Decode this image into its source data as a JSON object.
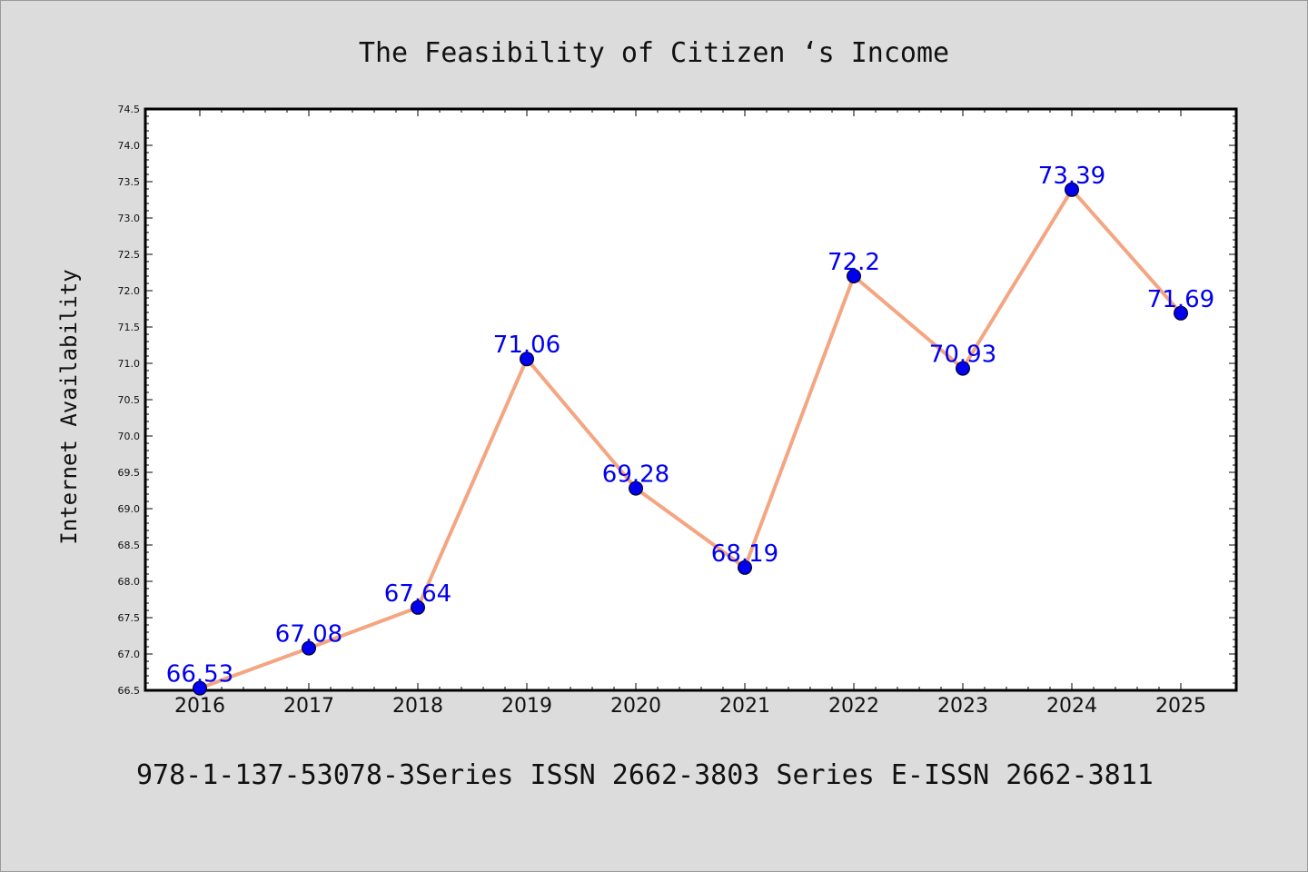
{
  "chart_data": {
    "type": "line",
    "title": "The Feasibility of Citizen ‘s Income",
    "ylabel": "Internet Availability",
    "xlabel": "",
    "categories": [
      "2016",
      "2017",
      "2018",
      "2019",
      "2020",
      "2021",
      "2022",
      "2023",
      "2024",
      "2025"
    ],
    "series": [
      {
        "values": [
          66.53,
          67.08,
          67.64,
          71.06,
          69.28,
          68.19,
          72.2,
          70.93,
          73.39,
          71.69
        ]
      }
    ],
    "data_labels": [
      "66.53",
      "67.08",
      "67.64",
      "71.06",
      "69.28",
      "68.19",
      "72.2",
      "70.93",
      "73.39",
      "71.69"
    ],
    "ylim": [
      66.5,
      74.5
    ],
    "yticks": [
      "66.5",
      "67.0",
      "67.5",
      "68.0",
      "68.5",
      "69.0",
      "69.5",
      "70.0",
      "70.5",
      "71.0",
      "71.5",
      "72.0",
      "72.5",
      "73.0",
      "73.5",
      "74.0",
      "74.5"
    ],
    "grid": false,
    "colors": {
      "line": "#f4a582",
      "marker": "#0000ee",
      "label": "#0000ee"
    }
  },
  "footer": "978-1-137-53078-3Series ISSN 2662-3803 Series E-ISSN 2662-3811"
}
